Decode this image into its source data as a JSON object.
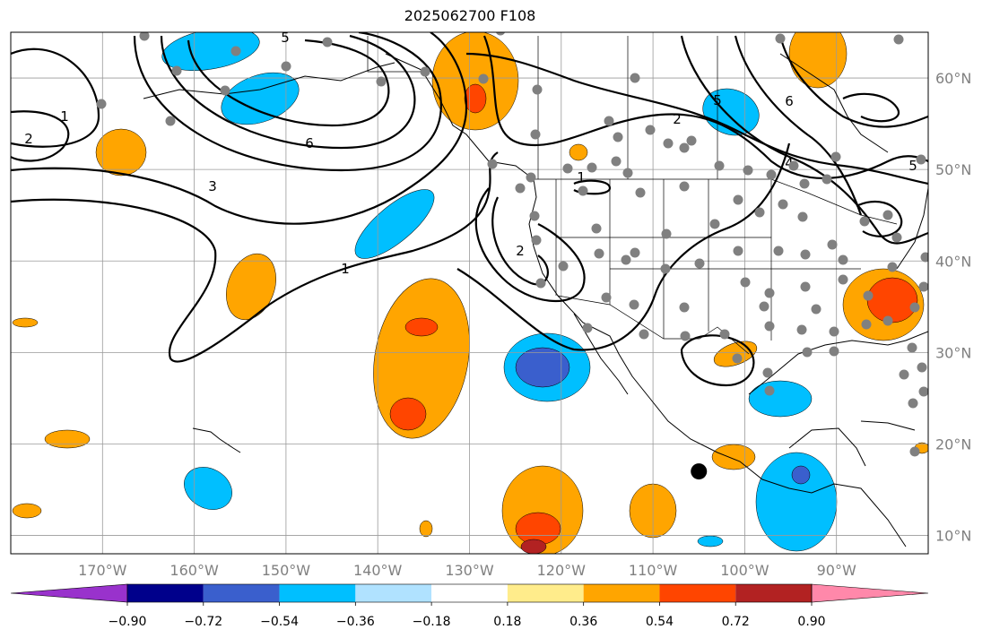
{
  "title": "2025062700 F108",
  "map": {
    "lon_range": [
      -180,
      -80
    ],
    "lat_range": [
      8,
      65
    ],
    "grid": true,
    "lat_ticks": [
      "60°N",
      "50°N",
      "40°N",
      "30°N",
      "20°N",
      "10°N"
    ],
    "lon_ticks": [
      "170°W",
      "160°W",
      "150°W",
      "140°W",
      "130°W",
      "120°W",
      "110°W",
      "100°W",
      "90°W"
    ],
    "contour_labels": [
      "1",
      "2",
      "5",
      "6",
      "3",
      "1",
      "2",
      "1",
      "5",
      "2",
      "4",
      "6",
      "5"
    ],
    "marker": {
      "lon": -105,
      "lat": 17,
      "color": "#000000"
    },
    "station_color": "#808080"
  },
  "colorbar": {
    "colors": [
      "#9932CC",
      "#00008B",
      "#3A5FCD",
      "#00BFFF",
      "#B0E2FF",
      "#FFFFFF",
      "#FFEC8B",
      "#FFA500",
      "#FF4500",
      "#B22222",
      "#FF88AA"
    ],
    "tick_labels": [
      "−0.90",
      "−0.72",
      "−0.54",
      "−0.36",
      "−0.18",
      "0.18",
      "0.36",
      "0.54",
      "0.72",
      "0.90"
    ]
  }
}
